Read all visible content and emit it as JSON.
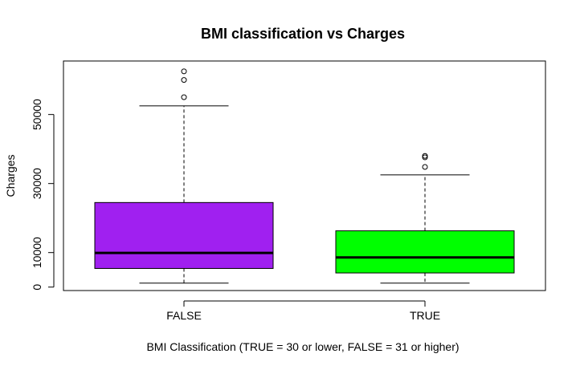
{
  "chart_data": {
    "type": "boxplot",
    "title": "BMI classification vs Charges",
    "xlabel": "BMI Classification (TRUE = 30 or lower, FALSE = 31 or higher)",
    "ylabel": "Charges",
    "ylim": [
      -1000,
      65500
    ],
    "y_ticks": [
      0,
      10000,
      30000,
      50000
    ],
    "grid": false,
    "categories": [
      "FALSE",
      "TRUE"
    ],
    "boxes": [
      {
        "name": "FALSE",
        "color": "#A020F0",
        "whisker_low": 1150,
        "q1": 5400,
        "median": 9900,
        "q3": 24500,
        "whisker_high": 52500,
        "outliers": [
          55000,
          60000,
          62500
        ]
      },
      {
        "name": "TRUE",
        "color": "#00FF00",
        "whisker_low": 1150,
        "q1": 4100,
        "median": 8600,
        "q3": 16300,
        "whisker_high": 32500,
        "outliers": [
          34800,
          37600,
          38000
        ]
      }
    ]
  }
}
